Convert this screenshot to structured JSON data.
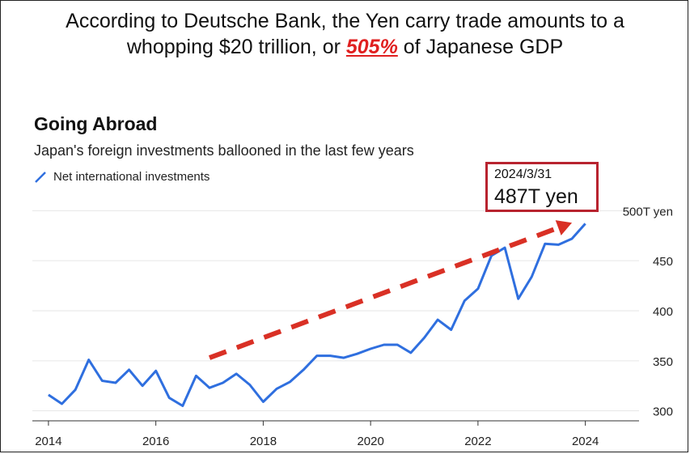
{
  "headline": {
    "line1": "According to Deutsche Bank, the Yen carry trade amounts to a",
    "line2_pre": "whopping $20 trillion, or ",
    "line2_highlight": "505%",
    "line2_post": " of Japanese GDP",
    "highlight_color": "#e02020"
  },
  "chart_data": {
    "type": "line",
    "title": "Going Abroad",
    "subtitle": "Japan's foreign investments ballooned in the last few years",
    "legend": [
      "Net international investments"
    ],
    "series": [
      {
        "name": "Net international investments",
        "color": "#2f6fdf",
        "points": [
          [
            2014.0,
            316
          ],
          [
            2014.25,
            307
          ],
          [
            2014.5,
            321
          ],
          [
            2014.75,
            351
          ],
          [
            2015.0,
            330
          ],
          [
            2015.25,
            328
          ],
          [
            2015.5,
            341
          ],
          [
            2015.75,
            325
          ],
          [
            2016.0,
            340
          ],
          [
            2016.25,
            313
          ],
          [
            2016.5,
            305
          ],
          [
            2016.75,
            335
          ],
          [
            2017.0,
            323
          ],
          [
            2017.25,
            328
          ],
          [
            2017.5,
            337
          ],
          [
            2017.75,
            326
          ],
          [
            2018.0,
            309
          ],
          [
            2018.25,
            322
          ],
          [
            2018.5,
            329
          ],
          [
            2018.75,
            341
          ],
          [
            2019.0,
            355
          ],
          [
            2019.25,
            355
          ],
          [
            2019.5,
            353
          ],
          [
            2019.75,
            357
          ],
          [
            2020.0,
            362
          ],
          [
            2020.25,
            366
          ],
          [
            2020.5,
            366
          ],
          [
            2020.75,
            358
          ],
          [
            2021.0,
            373
          ],
          [
            2021.25,
            391
          ],
          [
            2021.5,
            381
          ],
          [
            2021.75,
            410
          ],
          [
            2022.0,
            422
          ],
          [
            2022.25,
            455
          ],
          [
            2022.5,
            463
          ],
          [
            2022.75,
            412
          ],
          [
            2023.0,
            434
          ],
          [
            2023.25,
            467
          ],
          [
            2023.5,
            466
          ],
          [
            2023.75,
            472
          ],
          [
            2024.0,
            487
          ]
        ]
      }
    ],
    "x_ticks": [
      "2014",
      "2016",
      "2018",
      "2020",
      "2022",
      "2024"
    ],
    "x_tick_values": [
      2014,
      2016,
      2018,
      2020,
      2022,
      2024
    ],
    "y_ticks": [
      "300",
      "350",
      "400",
      "450",
      "500T yen"
    ],
    "y_tick_values": [
      300,
      350,
      400,
      450,
      500
    ],
    "xlim": [
      2013.7,
      2025.0
    ],
    "ylim": [
      290,
      510
    ],
    "grid": "horizontal",
    "annotation": {
      "date": "2024/3/31",
      "value_label": "487T yen",
      "box_color": "#b8232f"
    },
    "trend_arrow": {
      "color": "#d93025",
      "from": [
        2017.0,
        353
      ],
      "to": [
        2023.75,
        488
      ]
    }
  }
}
